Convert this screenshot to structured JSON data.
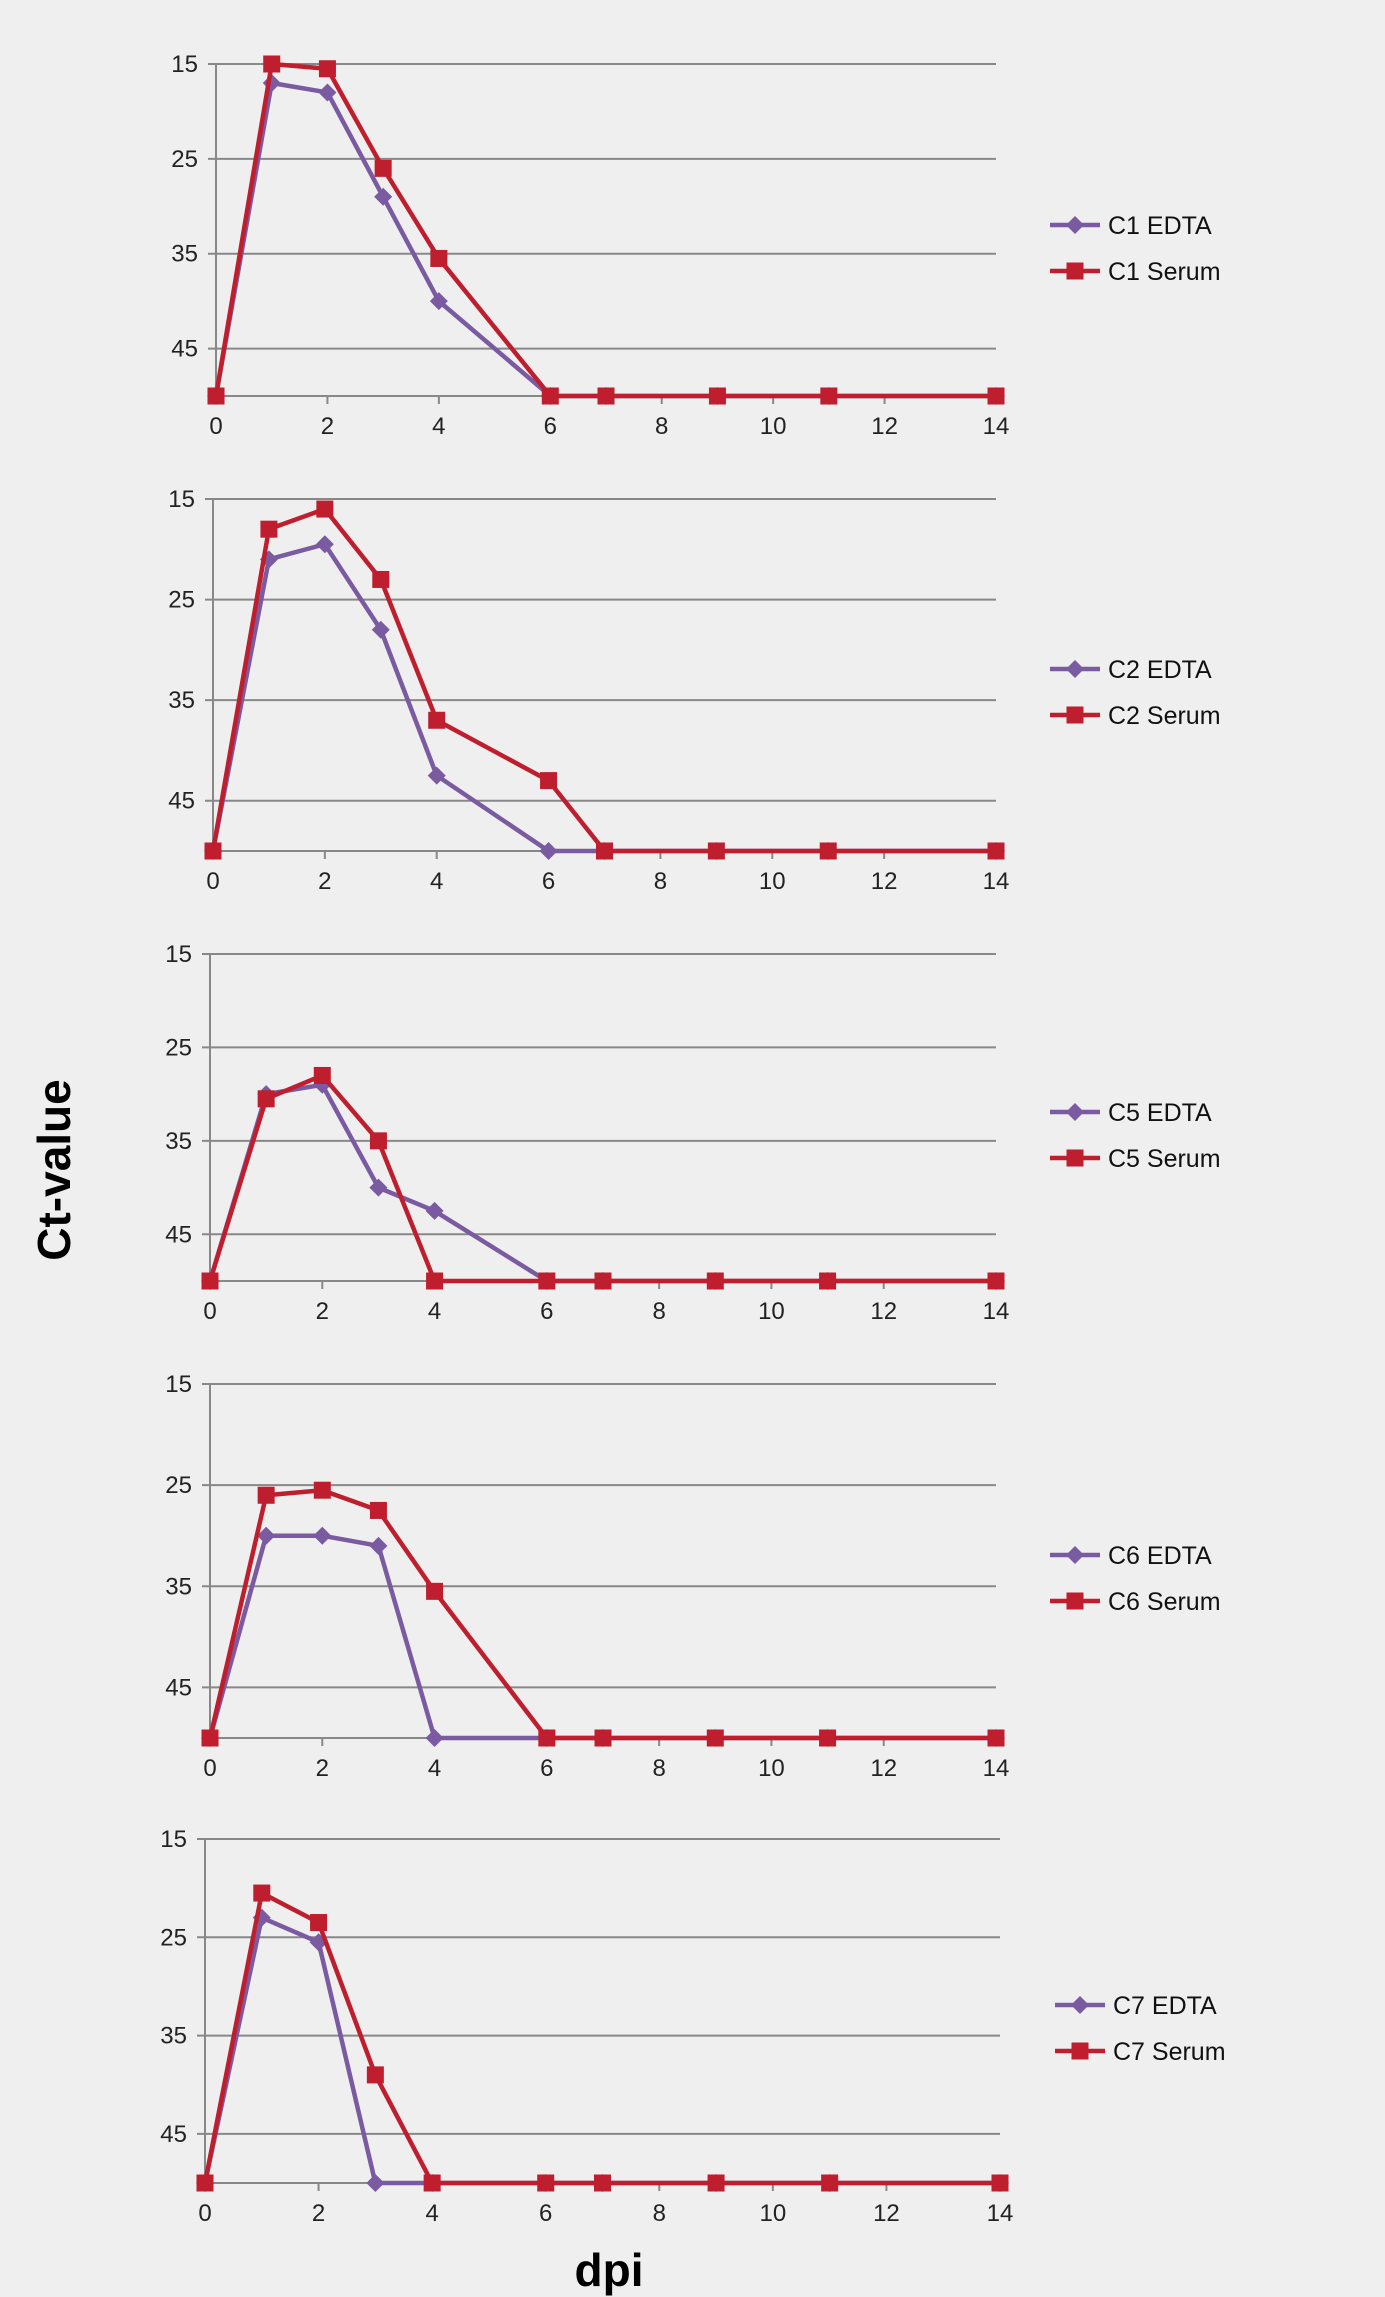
{
  "figure": {
    "ylabel": "Ct-value",
    "xlabel": "dpi"
  },
  "colors": {
    "edta": "#7a5aa0",
    "serum": "#be1e2d",
    "grid": "#888888",
    "background": "#efefef"
  },
  "chart_data": [
    {
      "type": "line",
      "x_ticks": [
        0,
        2,
        4,
        6,
        8,
        10,
        12,
        14
      ],
      "y_ticks": [
        15,
        25,
        35,
        45
      ],
      "ylim": [
        15,
        50
      ],
      "xlim": [
        0,
        14
      ],
      "y_inverted": true,
      "grid": true,
      "legend": "right",
      "series": [
        {
          "name": "C1 EDTA",
          "marker": "diamond",
          "x": [
            0,
            1,
            2,
            3,
            4,
            6,
            7,
            9,
            11,
            14
          ],
          "y": [
            50,
            17,
            18,
            29,
            40,
            50,
            50,
            50,
            50,
            50
          ]
        },
        {
          "name": "C1 Serum",
          "marker": "square",
          "x": [
            0,
            1,
            2,
            3,
            4,
            6,
            7,
            9,
            11,
            14
          ],
          "y": [
            50,
            15,
            15.5,
            26,
            35.5,
            50,
            50,
            50,
            50,
            50
          ]
        }
      ]
    },
    {
      "type": "line",
      "x_ticks": [
        0,
        2,
        4,
        6,
        8,
        10,
        12,
        14
      ],
      "y_ticks": [
        15,
        25,
        35,
        45
      ],
      "ylim": [
        15,
        50
      ],
      "xlim": [
        0,
        14
      ],
      "y_inverted": true,
      "grid": true,
      "legend": "right",
      "series": [
        {
          "name": "C2 EDTA",
          "marker": "diamond",
          "x": [
            0,
            1,
            2,
            3,
            4,
            6,
            7,
            9,
            11,
            14
          ],
          "y": [
            50,
            21,
            19.5,
            28,
            42.5,
            50,
            50,
            50,
            50,
            50
          ]
        },
        {
          "name": "C2 Serum",
          "marker": "square",
          "x": [
            0,
            1,
            2,
            3,
            4,
            6,
            7,
            9,
            11,
            14
          ],
          "y": [
            50,
            18,
            16,
            23,
            37,
            43,
            50,
            50,
            50,
            50
          ]
        }
      ]
    },
    {
      "type": "line",
      "x_ticks": [
        0,
        2,
        4,
        6,
        8,
        10,
        12,
        14
      ],
      "y_ticks": [
        15,
        25,
        35,
        45
      ],
      "ylim": [
        15,
        50
      ],
      "xlim": [
        0,
        14
      ],
      "y_inverted": true,
      "grid": true,
      "legend": "right",
      "series": [
        {
          "name": "C5 EDTA",
          "marker": "diamond",
          "x": [
            0,
            1,
            2,
            3,
            4,
            6,
            7,
            9,
            11,
            14
          ],
          "y": [
            50,
            30,
            29,
            40,
            42.5,
            50,
            50,
            50,
            50,
            50
          ]
        },
        {
          "name": "C5 Serum",
          "marker": "square",
          "x": [
            0,
            1,
            2,
            3,
            4,
            6,
            7,
            9,
            11,
            14
          ],
          "y": [
            50,
            30.5,
            28,
            35,
            50,
            50,
            50,
            50,
            50,
            50
          ]
        }
      ]
    },
    {
      "type": "line",
      "x_ticks": [
        0,
        2,
        4,
        6,
        8,
        10,
        12,
        14
      ],
      "y_ticks": [
        15,
        25,
        35,
        45
      ],
      "ylim": [
        15,
        50
      ],
      "xlim": [
        0,
        14
      ],
      "y_inverted": true,
      "grid": true,
      "legend": "right",
      "series": [
        {
          "name": "C6 EDTA",
          "marker": "diamond",
          "x": [
            0,
            1,
            2,
            3,
            4,
            6,
            7,
            9,
            11,
            14
          ],
          "y": [
            50,
            30,
            30,
            31,
            50,
            50,
            50,
            50,
            50,
            50
          ]
        },
        {
          "name": "C6 Serum",
          "marker": "square",
          "x": [
            0,
            1,
            2,
            3,
            4,
            6,
            7,
            9,
            11,
            14
          ],
          "y": [
            50,
            26,
            25.5,
            27.5,
            35.5,
            50,
            50,
            50,
            50,
            50
          ]
        }
      ]
    },
    {
      "type": "line",
      "x_ticks": [
        0,
        2,
        4,
        6,
        8,
        10,
        12,
        14
      ],
      "y_ticks": [
        15,
        25,
        35,
        45
      ],
      "ylim": [
        15,
        50
      ],
      "xlim": [
        0,
        14
      ],
      "y_inverted": true,
      "grid": true,
      "legend": "right",
      "series": [
        {
          "name": "C7 EDTA",
          "marker": "diamond",
          "x": [
            0,
            1,
            2,
            3,
            4,
            6,
            7,
            9,
            11,
            14
          ],
          "y": [
            50,
            23,
            25.5,
            50,
            50,
            50,
            50,
            50,
            50,
            50
          ]
        },
        {
          "name": "C7 Serum",
          "marker": "square",
          "x": [
            0,
            1,
            2,
            3,
            4,
            6,
            7,
            9,
            11,
            14
          ],
          "y": [
            50,
            20.5,
            23.5,
            39,
            50,
            50,
            50,
            50,
            50,
            50
          ]
        }
      ]
    }
  ]
}
